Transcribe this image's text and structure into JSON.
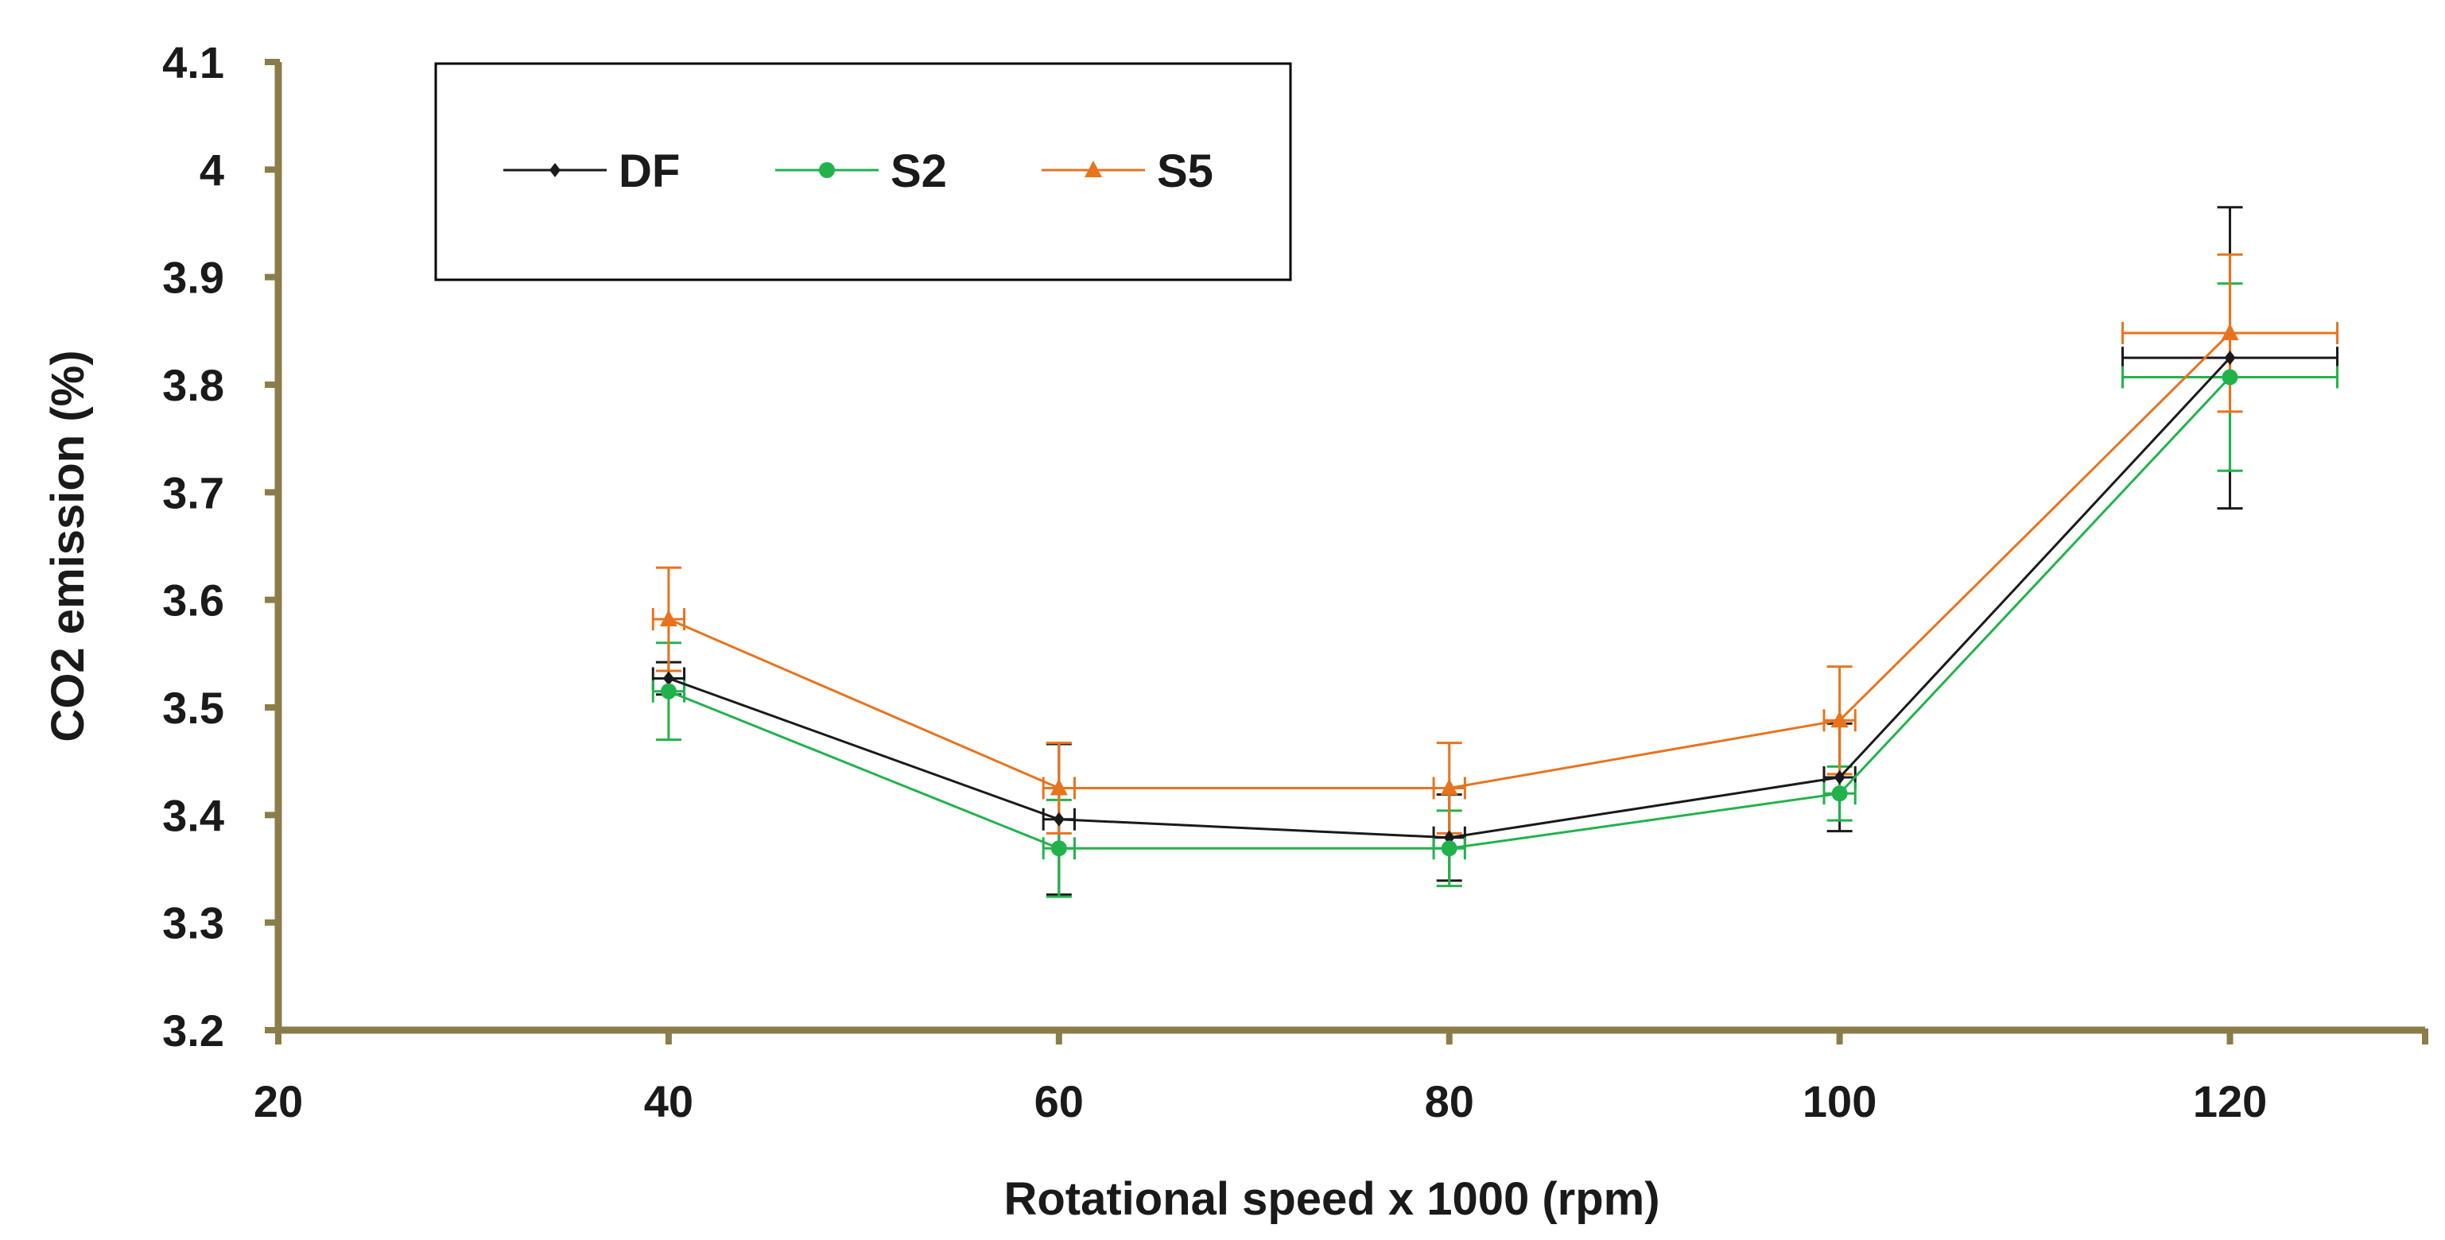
{
  "chart_data": {
    "type": "line",
    "xlabel": "Rotational speed x 1000 (rpm)",
    "ylabel": "CO2 emission (%)",
    "xlim": [
      20,
      130
    ],
    "ylim": [
      3.2,
      4.1
    ],
    "xticks": [
      20,
      40,
      60,
      80,
      100,
      120
    ],
    "xtick_labels": [
      "20",
      "40",
      "60",
      "80",
      "100",
      "120"
    ],
    "yticks": [
      3.2,
      3.3,
      3.4,
      3.5,
      3.6,
      3.7,
      3.8,
      3.9,
      4.0,
      4.1
    ],
    "ytick_labels": [
      "3.2",
      "3.3",
      "3.4",
      "3.5",
      "3.6",
      "3.7",
      "3.8",
      "3.9",
      "4",
      "4.1"
    ],
    "grid": false,
    "legend_position": "top-left",
    "x": [
      40,
      60,
      80,
      100,
      120
    ],
    "series": [
      {
        "name": "DF",
        "color": "#1a1a1a",
        "marker": "diamond",
        "values": [
          3.527,
          3.396,
          3.379,
          3.435,
          3.825
        ],
        "y_error": [
          0.015,
          0.07,
          0.04,
          0.05,
          0.14
        ],
        "x_error": [
          0.8,
          0.8,
          0.8,
          0.8,
          5.5
        ]
      },
      {
        "name": "S2",
        "color": "#22b24c",
        "marker": "circle",
        "values": [
          3.515,
          3.369,
          3.369,
          3.42,
          3.807
        ],
        "y_error": [
          0.045,
          0.045,
          0.035,
          0.025,
          0.087
        ],
        "x_error": [
          0.8,
          0.8,
          0.8,
          0.8,
          5.5
        ]
      },
      {
        "name": "S5",
        "color": "#e8731e",
        "marker": "triangle",
        "values": [
          3.582,
          3.425,
          3.425,
          3.488,
          3.848
        ],
        "y_error": [
          0.048,
          0.042,
          0.042,
          0.05,
          0.073
        ],
        "x_error": [
          0.8,
          0.8,
          0.8,
          0.8,
          5.5
        ]
      }
    ]
  }
}
